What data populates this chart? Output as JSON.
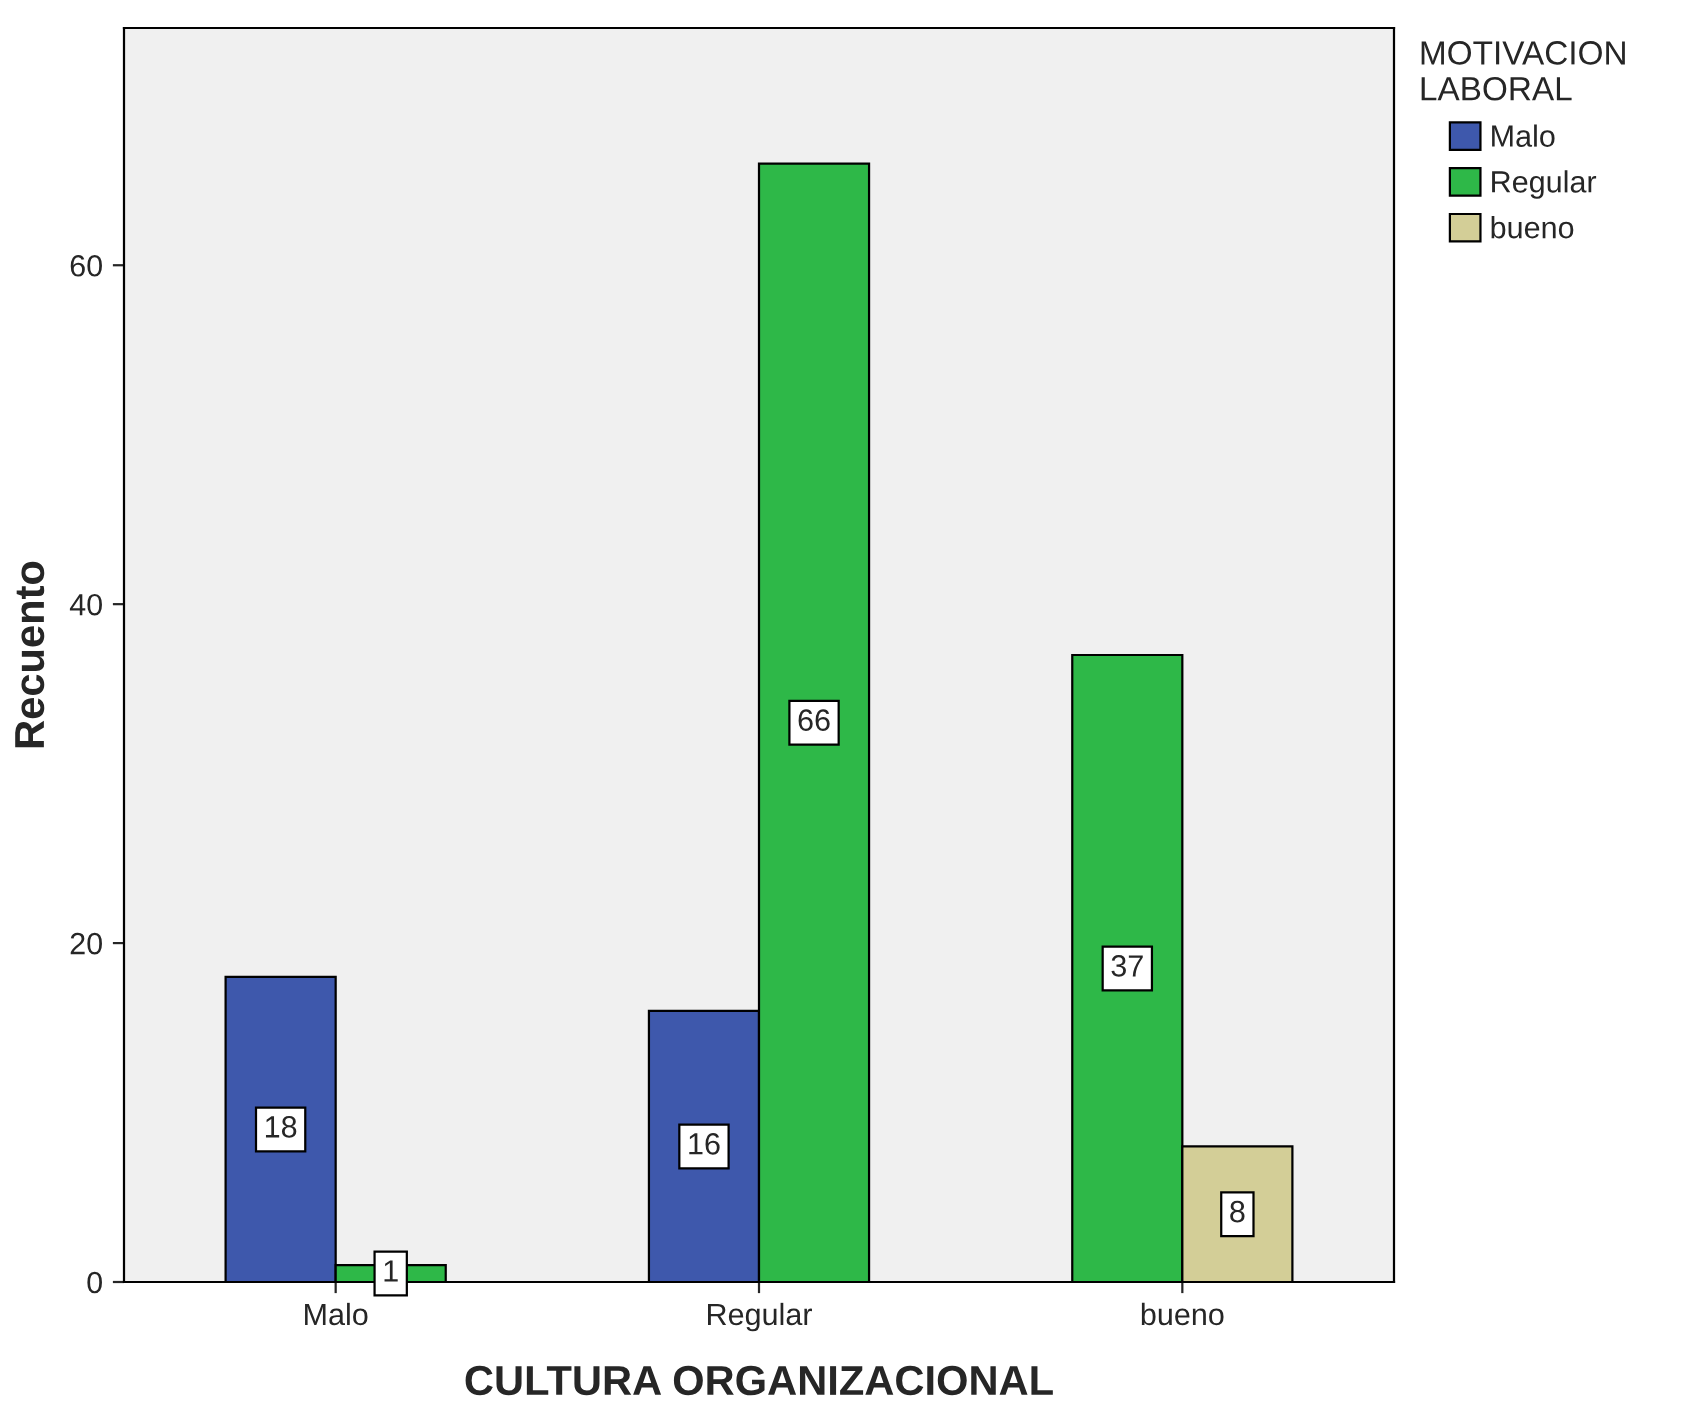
{
  "chart_data": {
    "type": "bar",
    "xlabel": "CULTURA ORGANIZACIONAL",
    "ylabel": "Recuento",
    "legend_title": "MOTIVACION\nLABORAL",
    "categories": [
      "Malo",
      "Regular",
      "bueno"
    ],
    "series": [
      {
        "name": "Malo",
        "color": "#3e58ac",
        "values": [
          18,
          16,
          null
        ]
      },
      {
        "name": "Regular",
        "color": "#2eb848",
        "values": [
          1,
          66,
          37
        ]
      },
      {
        "name": "bueno",
        "color": "#d3ce97",
        "values": [
          null,
          null,
          8
        ]
      }
    ],
    "ylim": [
      0,
      74
    ],
    "yticks": [
      0,
      20,
      40,
      60
    ],
    "data_labels": true,
    "grid": false,
    "legend": "top right"
  }
}
